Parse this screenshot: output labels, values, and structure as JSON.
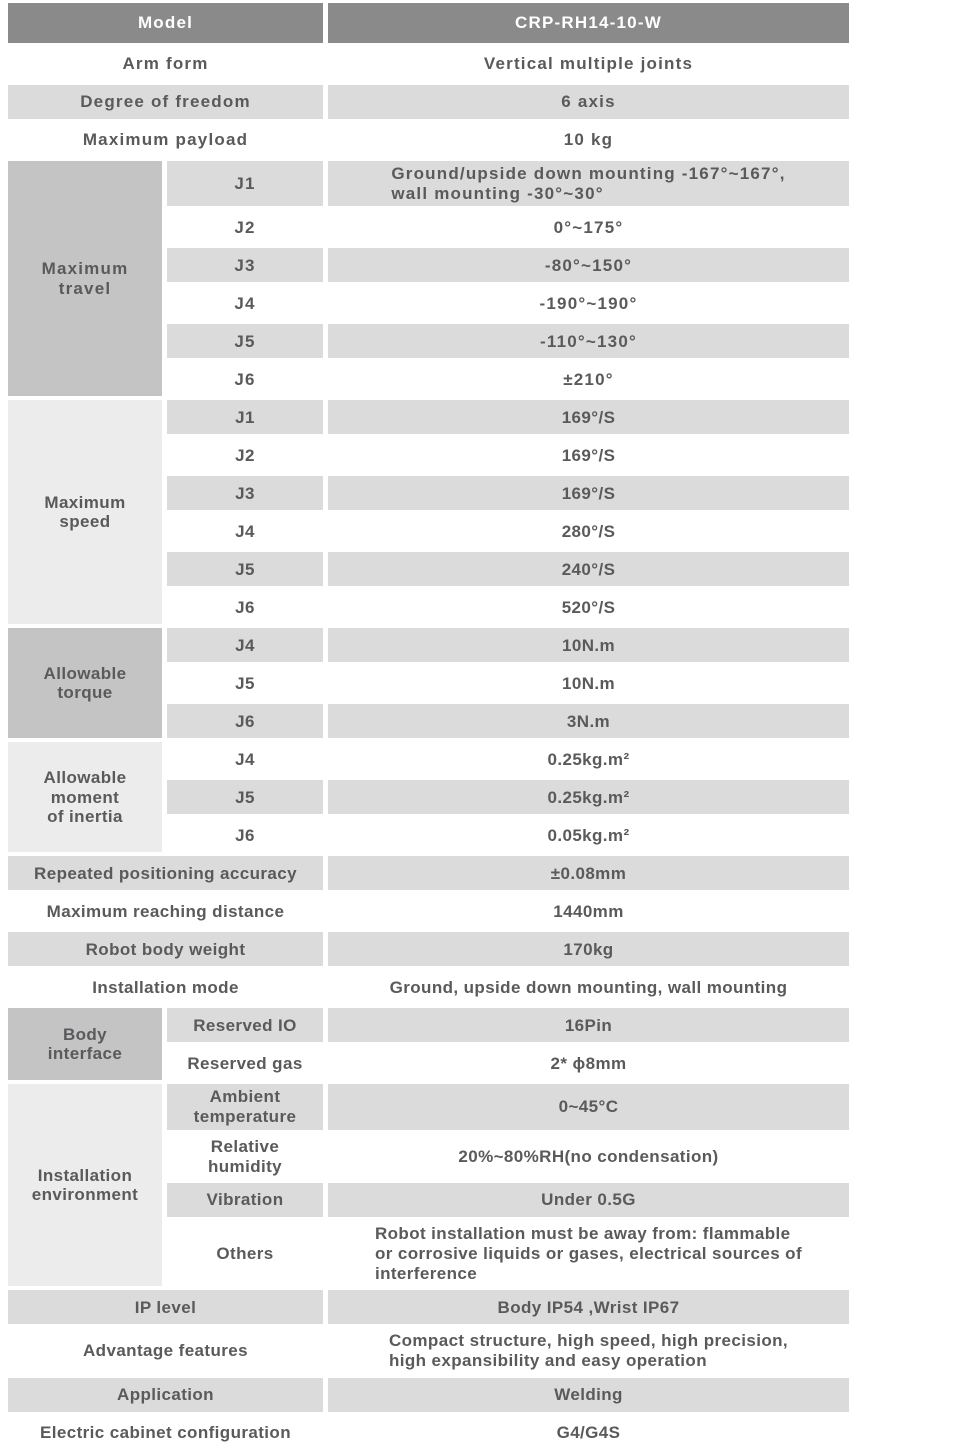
{
  "colors": {
    "header_bg": "#8a8a8a",
    "header_text": "#ffffff",
    "row_shaded_bg": "#dbdbdb",
    "row_plain_bg": "#ffffff",
    "group_dark_bg": "#c4c4c4",
    "group_light_bg": "#ececec",
    "text": "#595a5c"
  },
  "table": {
    "header": {
      "label": "Model",
      "value": "CRP-RH14-10-W"
    },
    "sections": [
      {
        "kind": "simple",
        "rows": [
          {
            "label": "Arm form",
            "value": "Vertical multiple joints"
          },
          {
            "label": "Degree of freedom",
            "value": "6 axis"
          },
          {
            "label": "Maximum payload",
            "value": "10 kg"
          }
        ]
      },
      {
        "kind": "group",
        "label": "Maximum\ntravel",
        "rows": [
          {
            "label": "J1",
            "value": "Ground/upside down mounting -167°~167°,\nwall mounting -30°~30°"
          },
          {
            "label": "J2",
            "value": "0°~175°"
          },
          {
            "label": "J3",
            "value": "-80°~150°"
          },
          {
            "label": "J4",
            "value": "-190°~190°"
          },
          {
            "label": "J5",
            "value": "-110°~130°"
          },
          {
            "label": "J6",
            "value": "±210°"
          }
        ]
      },
      {
        "kind": "group",
        "label": "Maximum\nspeed",
        "rows": [
          {
            "label": "J1",
            "value": "169°/S"
          },
          {
            "label": "J2",
            "value": "169°/S"
          },
          {
            "label": "J3",
            "value": "169°/S"
          },
          {
            "label": "J4",
            "value": "280°/S"
          },
          {
            "label": "J5",
            "value": "240°/S"
          },
          {
            "label": "J6",
            "value": "520°/S"
          }
        ]
      },
      {
        "kind": "group",
        "label": "Allowable\ntorque",
        "rows": [
          {
            "label": "J4",
            "value": "10N.m"
          },
          {
            "label": "J5",
            "value": "10N.m"
          },
          {
            "label": "J6",
            "value": "3N.m"
          }
        ]
      },
      {
        "kind": "group",
        "label": "Allowable\nmoment\nof inertia",
        "rows": [
          {
            "label": "J4",
            "value": "0.25kg.m²"
          },
          {
            "label": "J5",
            "value": "0.25kg.m²"
          },
          {
            "label": "J6",
            "value": "0.05kg.m²"
          }
        ]
      },
      {
        "kind": "simple",
        "rows": [
          {
            "label": "Repeated positioning accuracy",
            "value": "±0.08mm"
          },
          {
            "label": "Maximum reaching distance",
            "value": "1440mm"
          },
          {
            "label": "Robot body weight",
            "value": "170kg"
          },
          {
            "label": "Installation mode",
            "value": "Ground, upside down mounting, wall mounting"
          }
        ]
      },
      {
        "kind": "group",
        "label": "Body\ninterface",
        "rows": [
          {
            "label": "Reserved IO",
            "value": "16Pin"
          },
          {
            "label": "Reserved gas",
            "value": "2* ϕ8mm"
          }
        ]
      },
      {
        "kind": "group",
        "label": "Installation\nenvironment",
        "rows": [
          {
            "label": "Ambient\ntemperature",
            "value": "0~45°C"
          },
          {
            "label": "Relative\nhumidity",
            "value": "20%~80%RH(no condensation)"
          },
          {
            "label": "Vibration",
            "value": "Under 0.5G"
          },
          {
            "label": "Others",
            "value": "Robot installation must be away from: flammable\nor corrosive liquids or gases, electrical sources of\ninterference"
          }
        ]
      },
      {
        "kind": "simple",
        "rows": [
          {
            "label": "IP level",
            "value": "Body IP54 ,Wrist IP67"
          },
          {
            "label": "Advantage features",
            "value": "Compact structure, high speed, high precision,\nhigh expansibility and easy operation"
          },
          {
            "label": "Application",
            "value": "Welding"
          },
          {
            "label": "Electric cabinet configuration",
            "value": "G4/G4S"
          }
        ]
      }
    ]
  }
}
